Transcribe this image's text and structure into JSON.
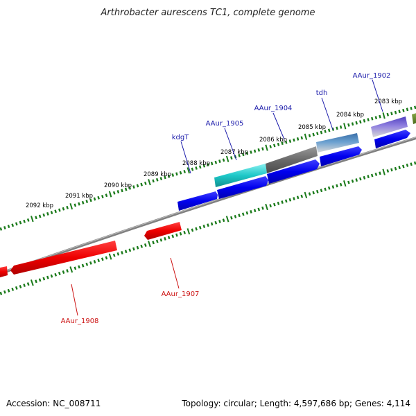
{
  "title": "Arthrobacter aurescens TC1, complete genome",
  "footer": {
    "accession": "Accession: NC_008711",
    "summary": "Topology: circular; Length: 4,597,686 bp; Genes: 4,114"
  },
  "colors": {
    "forward_strand": "#0000ee",
    "reverse_strand": "#ee0000",
    "backbone": "#808080",
    "tick_dots": "#1a7a1a",
    "label_forward": "#1a1aaa",
    "label_reverse": "#cc1111"
  },
  "kbp_labels": [
    "2092 kbp",
    "2091 kbp",
    "2090 kbp",
    "2089 kbp",
    "2088 kbp",
    "2087 kbp",
    "2086 kbp",
    "2085 kbp",
    "2084 kbp",
    "2083 kbp"
  ],
  "gene_labels": [
    {
      "text": "AAur_1902",
      "strand": "forward"
    },
    {
      "text": "tdh",
      "strand": "forward"
    },
    {
      "text": "AAur_1904",
      "strand": "forward"
    },
    {
      "text": "AAur_1905",
      "strand": "forward"
    },
    {
      "text": "kdgT",
      "strand": "forward"
    },
    {
      "text": "AAur_1907",
      "strand": "reverse"
    },
    {
      "text": "AAur_1908",
      "strand": "reverse"
    }
  ],
  "features": [
    {
      "name": "cog-cyan",
      "color": "#1ec8c8"
    },
    {
      "name": "cog-gray",
      "color": "#6a6a6a"
    },
    {
      "name": "cog-steelblue",
      "color": "#4a86b8"
    },
    {
      "name": "cog-purple",
      "color": "#6a5ac8"
    },
    {
      "name": "cog-olive",
      "color": "#6a8a2a"
    }
  ]
}
